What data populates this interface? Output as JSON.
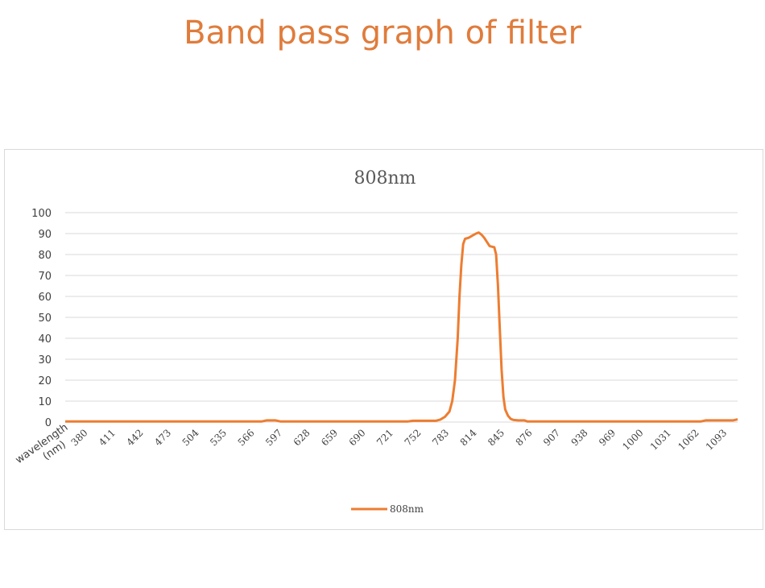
{
  "page_title": "Band pass graph of filter",
  "chart_data": {
    "type": "line",
    "title": "808nm",
    "xlabel": "wavelength (nm)",
    "ylabel": "",
    "ylim": [
      0,
      100
    ],
    "yticks": [
      0,
      10,
      20,
      30,
      40,
      50,
      60,
      70,
      80,
      90,
      100
    ],
    "x_tick_labels": [
      "380",
      "411",
      "442",
      "473",
      "504",
      "535",
      "566",
      "597",
      "628",
      "659",
      "690",
      "721",
      "752",
      "783",
      "814",
      "845",
      "876",
      "907",
      "938",
      "969",
      "1000",
      "1031",
      "1062",
      "1093"
    ],
    "xlim": [
      365,
      1100
    ],
    "grid": true,
    "legend_position": "bottom",
    "series": [
      {
        "name": "808nm",
        "color": "#ed7d31",
        "points": [
          [
            365,
            0.3
          ],
          [
            580,
            0.3
          ],
          [
            585,
            0.8
          ],
          [
            595,
            0.8
          ],
          [
            600,
            0.3
          ],
          [
            740,
            0.3
          ],
          [
            745,
            0.6
          ],
          [
            770,
            0.6
          ],
          [
            775,
            1.2
          ],
          [
            780,
            2.5
          ],
          [
            785,
            5
          ],
          [
            788,
            10
          ],
          [
            791,
            20
          ],
          [
            794,
            40
          ],
          [
            796,
            60
          ],
          [
            798,
            75
          ],
          [
            800,
            85
          ],
          [
            802,
            87.5
          ],
          [
            806,
            88
          ],
          [
            810,
            89
          ],
          [
            814,
            90
          ],
          [
            817,
            90.5
          ],
          [
            820,
            89.5
          ],
          [
            823,
            88
          ],
          [
            826,
            86
          ],
          [
            829,
            84
          ],
          [
            834,
            83.5
          ],
          [
            836,
            80
          ],
          [
            838,
            65
          ],
          [
            840,
            45
          ],
          [
            842,
            25
          ],
          [
            844,
            12
          ],
          [
            846,
            6
          ],
          [
            849,
            3
          ],
          [
            852,
            1.5
          ],
          [
            855,
            1
          ],
          [
            860,
            0.8
          ],
          [
            867,
            0.8
          ],
          [
            870,
            0.3
          ],
          [
            1060,
            0.3
          ],
          [
            1065,
            0.8
          ],
          [
            1095,
            0.8
          ],
          [
            1100,
            1.3
          ]
        ]
      }
    ]
  }
}
